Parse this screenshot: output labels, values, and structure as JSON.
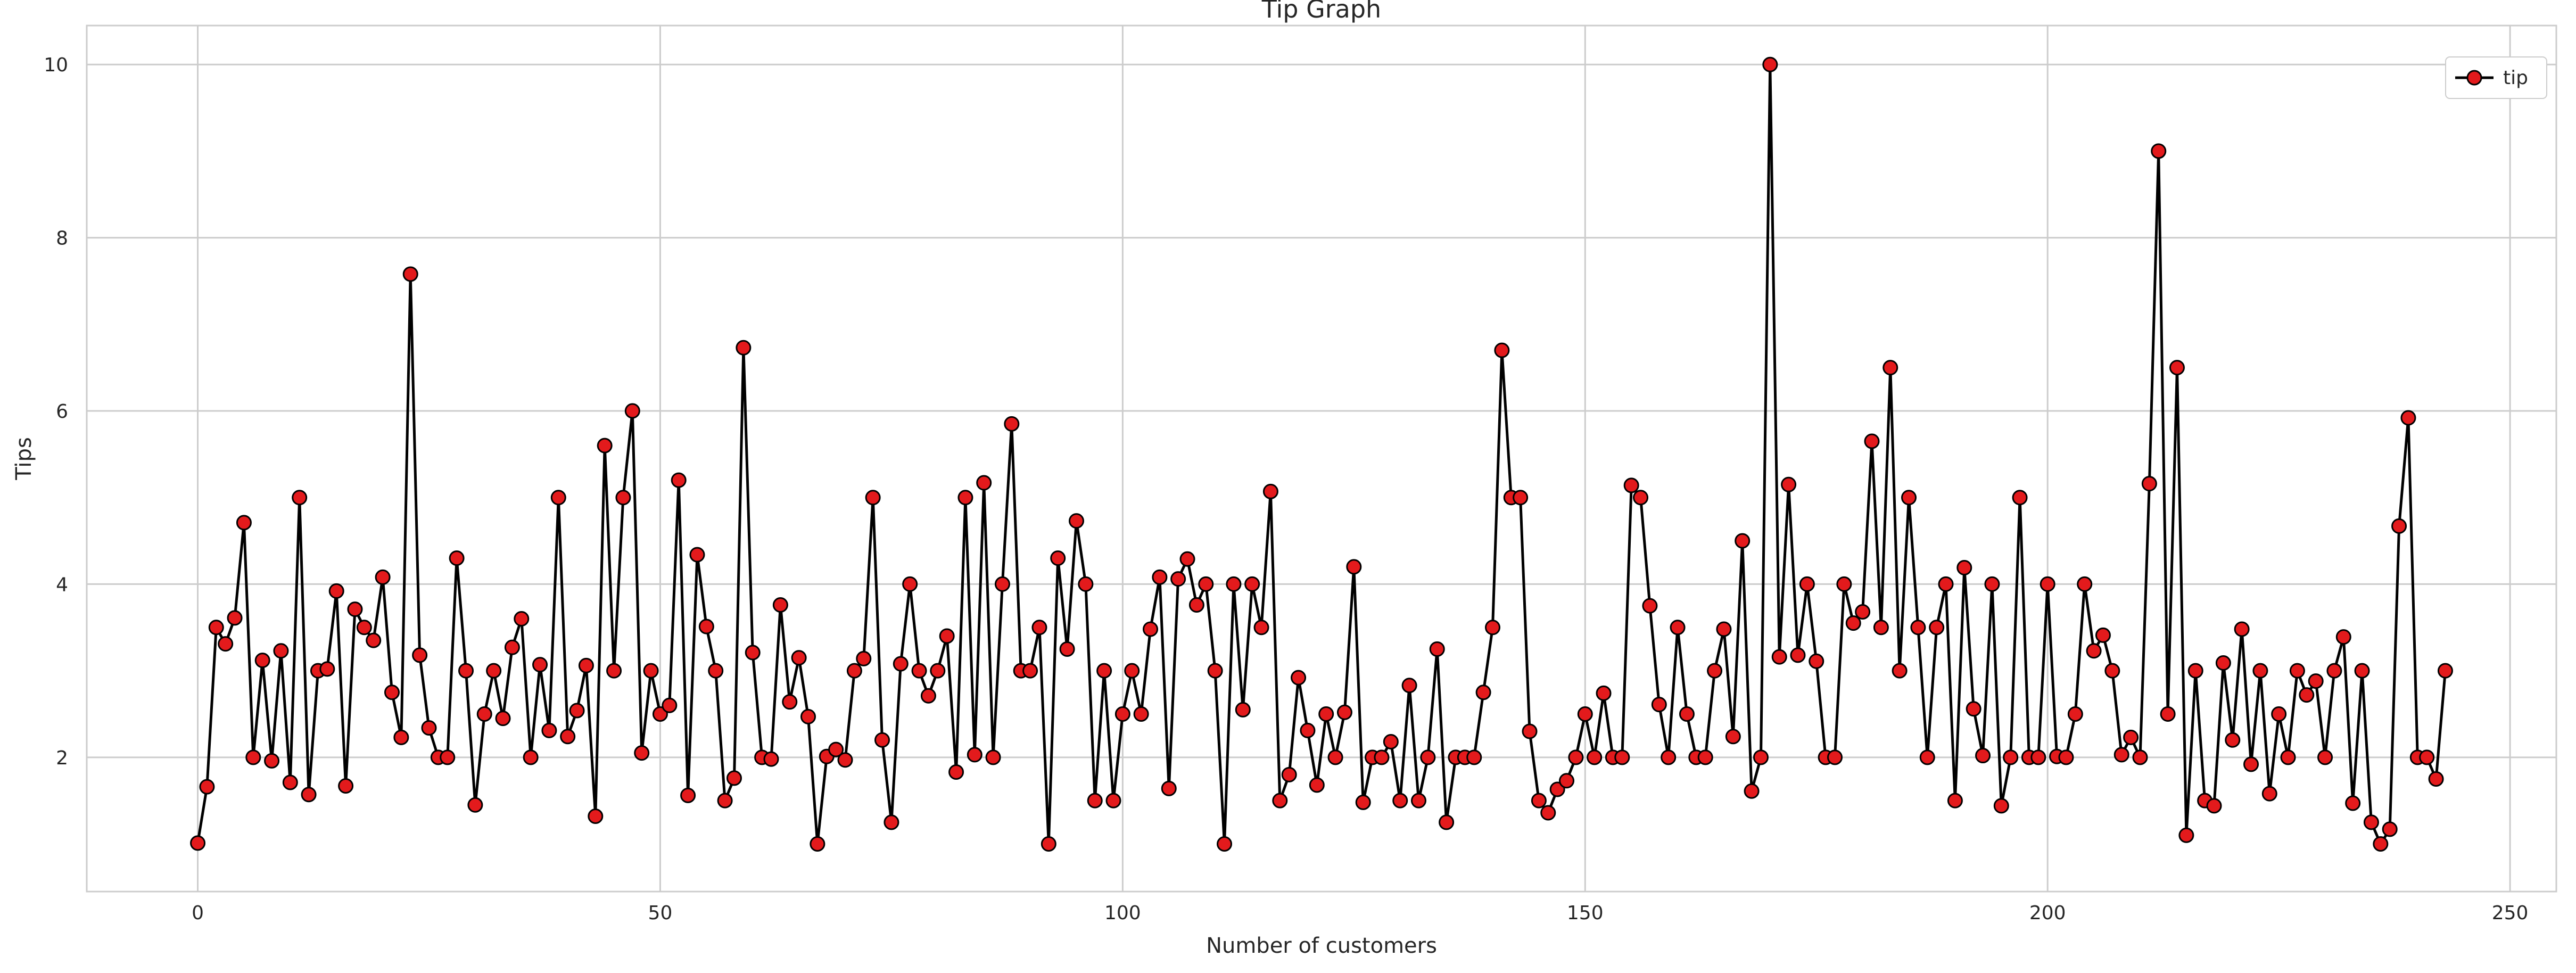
{
  "chart_data": {
    "type": "line",
    "title": "Tip Graph",
    "xlabel": "Number of customers",
    "ylabel": "Tips",
    "xlim": [
      -12,
      255
    ],
    "ylim": [
      0.45,
      10.45
    ],
    "xticks": [
      0,
      50,
      100,
      150,
      200,
      250
    ],
    "yticks": [
      2,
      4,
      6,
      8,
      10
    ],
    "grid": true,
    "legend_position": "top-right",
    "colors": {
      "line": "#000000",
      "marker_fill": "#e31a1c",
      "marker_edge": "#000000",
      "grid": "#cccccc",
      "spine": "#cccccc"
    },
    "series": [
      {
        "name": "tip",
        "values": [
          1.01,
          1.66,
          3.5,
          3.31,
          3.61,
          4.71,
          2.0,
          3.12,
          1.96,
          3.23,
          1.71,
          5.0,
          1.57,
          3.0,
          3.02,
          3.92,
          1.67,
          3.71,
          3.5,
          3.35,
          4.08,
          2.75,
          2.23,
          7.58,
          3.18,
          2.34,
          2.0,
          2.0,
          4.3,
          3.0,
          1.45,
          2.5,
          3.0,
          2.45,
          3.27,
          3.6,
          2.0,
          3.07,
          2.31,
          5.0,
          2.24,
          2.54,
          3.06,
          1.32,
          5.6,
          3.0,
          5.0,
          6.0,
          2.05,
          3.0,
          2.5,
          2.6,
          5.2,
          1.56,
          4.34,
          3.51,
          3.0,
          1.5,
          1.76,
          6.73,
          3.21,
          2.0,
          1.98,
          3.76,
          2.64,
          3.15,
          2.47,
          1.0,
          2.01,
          2.09,
          1.97,
          3.0,
          3.14,
          5.0,
          2.2,
          1.25,
          3.08,
          4.0,
          3.0,
          2.71,
          3.0,
          3.4,
          1.83,
          5.0,
          2.03,
          5.17,
          2.0,
          4.0,
          5.85,
          3.0,
          3.0,
          3.5,
          1.0,
          4.3,
          3.25,
          4.73,
          4.0,
          1.5,
          3.0,
          1.5,
          2.5,
          3.0,
          2.5,
          3.48,
          4.08,
          1.64,
          4.06,
          4.29,
          3.76,
          4.0,
          3.0,
          1.0,
          4.0,
          2.55,
          4.0,
          3.5,
          5.07,
          1.5,
          1.8,
          2.92,
          2.31,
          1.68,
          2.5,
          2.0,
          2.52,
          4.2,
          1.48,
          2.0,
          2.0,
          2.18,
          1.5,
          2.83,
          1.5,
          2.0,
          3.25,
          1.25,
          2.0,
          2.0,
          2.0,
          2.75,
          3.5,
          6.7,
          5.0,
          5.0,
          2.3,
          1.5,
          1.36,
          1.63,
          1.73,
          2.0,
          2.5,
          2.0,
          2.74,
          2.0,
          2.0,
          5.14,
          5.0,
          3.75,
          2.61,
          2.0,
          3.5,
          2.5,
          2.0,
          2.0,
          3.0,
          3.48,
          2.24,
          4.5,
          1.61,
          2.0,
          10.0,
          3.16,
          5.15,
          3.18,
          4.0,
          3.11,
          2.0,
          2.0,
          4.0,
          3.55,
          3.68,
          5.65,
          3.5,
          6.5,
          3.0,
          5.0,
          3.5,
          2.0,
          3.5,
          4.0,
          1.5,
          4.19,
          2.56,
          2.02,
          4.0,
          1.44,
          2.0,
          5.0,
          2.0,
          2.0,
          4.0,
          2.01,
          2.0,
          2.5,
          4.0,
          3.23,
          3.41,
          3.0,
          2.03,
          2.23,
          2.0,
          5.16,
          9.0,
          2.5,
          6.5,
          1.1,
          3.0,
          1.5,
          1.44,
          3.09,
          2.2,
          3.48,
          1.92,
          3.0,
          1.58,
          2.5,
          2.0,
          3.0,
          2.72,
          2.88,
          2.0,
          3.0,
          3.39,
          1.47,
          3.0,
          1.25,
          1.0,
          1.17,
          4.67,
          5.92,
          2.0,
          2.0,
          1.75,
          3.0
        ]
      }
    ]
  }
}
